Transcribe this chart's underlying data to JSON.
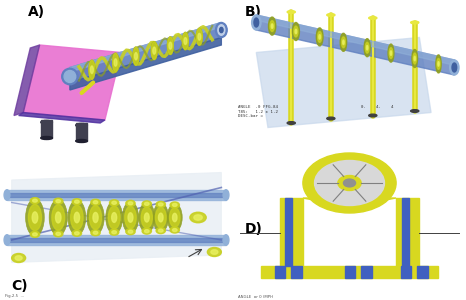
{
  "figure_width": 4.66,
  "figure_height": 3.0,
  "dpi": 100,
  "labels": [
    "A)",
    "B)",
    "C)",
    "D)"
  ],
  "label_fontsize": 10,
  "label_fontweight": "bold",
  "coil_color": "#c8d020",
  "coil_inner": "#e8f060",
  "shaft_dark": "#4060a0",
  "shaft_mid": "#6080c0",
  "shaft_light": "#90b0d8",
  "body_pink": "#e060c0",
  "body_purple": "#7040a0",
  "yellow": "#d8d820",
  "yellow_bright": "#e8e840",
  "blue_light": "#b0c0d8",
  "blue_pale": "#d0dce8",
  "dark_gray": "#404040",
  "green_coil": "#90a020",
  "bg_white": "#f8f8f8"
}
